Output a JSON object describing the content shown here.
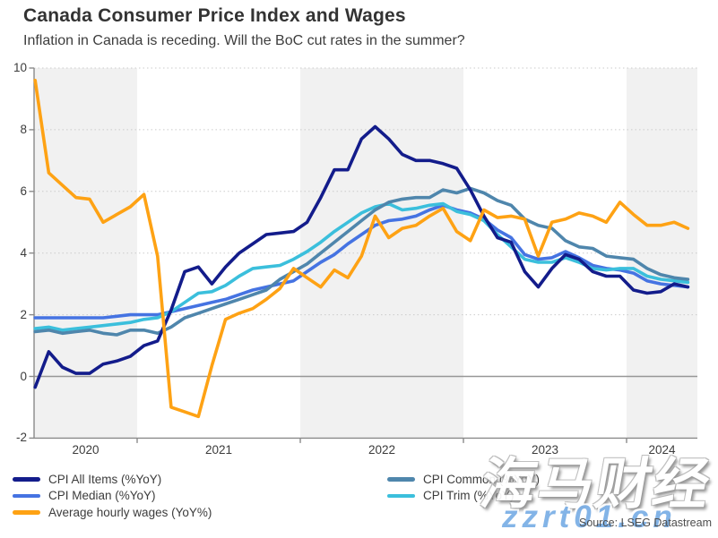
{
  "source": {
    "label": "Source: LSEG Datastream"
  },
  "watermark": {
    "text": "海马财经",
    "url": "zzrt01.cn"
  },
  "legend": {
    "left_indexes": [
      0,
      1,
      2
    ],
    "right_indexes": [
      3,
      4
    ]
  },
  "chart_data": {
    "type": "line",
    "title": "Canada Consumer Price Index and Wages",
    "subtitle": "Inflation in Canada is receding. Will the BoC cut rates in the summer?",
    "xlabel": "",
    "ylabel": "",
    "ylim": [
      -2,
      10
    ],
    "y_ticks": [
      10,
      8,
      6,
      4,
      2,
      0,
      -2
    ],
    "x_year_labels": [
      "2020",
      "2021",
      "2022",
      "2023",
      "2024"
    ],
    "grid": "dotted horizontal gridlines at 2,4,6,8,10; solid line at 0; alternating gray/white year bands",
    "legend_position": "bottom",
    "x": [
      "2020-05",
      "2020-06",
      "2020-07",
      "2020-08",
      "2020-09",
      "2020-10",
      "2020-11",
      "2020-12",
      "2021-01",
      "2021-02",
      "2021-03",
      "2021-04",
      "2021-05",
      "2021-06",
      "2021-07",
      "2021-08",
      "2021-09",
      "2021-10",
      "2021-11",
      "2021-12",
      "2022-01",
      "2022-02",
      "2022-03",
      "2022-04",
      "2022-05",
      "2022-06",
      "2022-07",
      "2022-08",
      "2022-09",
      "2022-10",
      "2022-11",
      "2022-12",
      "2023-01",
      "2023-02",
      "2023-03",
      "2023-04",
      "2023-05",
      "2023-06",
      "2023-07",
      "2023-08",
      "2023-09",
      "2023-10",
      "2023-11",
      "2023-12",
      "2024-01",
      "2024-02",
      "2024-03",
      "2024-04",
      "2024-05"
    ],
    "series": [
      {
        "name": "CPI All Items (%YoY)",
        "color": "#131c8b",
        "values": [
          -0.35,
          0.8,
          0.3,
          0.1,
          0.1,
          0.4,
          0.5,
          0.65,
          1.0,
          1.15,
          2.15,
          3.4,
          3.55,
          3.0,
          3.55,
          4.0,
          4.3,
          4.6,
          4.65,
          4.7,
          5.0,
          5.8,
          6.7,
          6.7,
          7.7,
          8.1,
          7.7,
          7.2,
          7.0,
          7.0,
          6.9,
          6.75,
          6.05,
          5.2,
          4.5,
          4.35,
          3.4,
          2.9,
          3.5,
          3.95,
          3.8,
          3.4,
          3.25,
          3.25,
          2.8,
          2.7,
          2.75,
          3.0,
          2.9
        ]
      },
      {
        "name": "CPI Median (%YoY)",
        "color": "#4573e2",
        "values": [
          1.9,
          1.9,
          1.9,
          1.9,
          1.9,
          1.9,
          1.95,
          2.0,
          2.0,
          2.0,
          2.1,
          2.2,
          2.3,
          2.4,
          2.5,
          2.65,
          2.8,
          2.9,
          3.0,
          3.1,
          3.4,
          3.7,
          3.95,
          4.3,
          4.6,
          4.9,
          5.05,
          5.1,
          5.2,
          5.4,
          5.55,
          5.4,
          5.3,
          5.1,
          4.75,
          4.5,
          3.95,
          3.8,
          3.85,
          4.05,
          3.85,
          3.6,
          3.5,
          3.45,
          3.35,
          3.1,
          3.0,
          2.95,
          2.9
        ]
      },
      {
        "name": "Average hourly wages (YoY%)",
        "color": "#fea214",
        "values": [
          9.6,
          6.6,
          6.2,
          5.8,
          5.75,
          5.0,
          5.25,
          5.5,
          5.9,
          3.9,
          -1.0,
          -1.15,
          -1.3,
          0.35,
          1.85,
          2.05,
          2.2,
          2.5,
          2.85,
          3.5,
          3.2,
          2.9,
          3.45,
          3.2,
          3.9,
          5.2,
          4.5,
          4.8,
          4.9,
          5.2,
          5.45,
          4.7,
          4.4,
          5.4,
          5.15,
          5.2,
          5.1,
          3.9,
          5.0,
          5.1,
          5.3,
          5.2,
          5.0,
          5.65,
          5.25,
          4.9,
          4.9,
          5.0,
          4.8
        ]
      },
      {
        "name": "CPI Common (%YoY)",
        "color": "#4f86ac",
        "values": [
          1.45,
          1.5,
          1.4,
          1.45,
          1.5,
          1.4,
          1.35,
          1.5,
          1.5,
          1.4,
          1.6,
          1.9,
          2.05,
          2.2,
          2.35,
          2.5,
          2.65,
          2.8,
          3.15,
          3.4,
          3.65,
          4.0,
          4.35,
          4.7,
          5.05,
          5.4,
          5.65,
          5.75,
          5.8,
          5.8,
          6.05,
          5.95,
          6.1,
          5.95,
          5.7,
          5.55,
          5.1,
          4.9,
          4.8,
          4.4,
          4.2,
          4.15,
          3.9,
          3.85,
          3.8,
          3.5,
          3.3,
          3.2,
          3.15
        ]
      },
      {
        "name": "CPI Trim (%YoY)",
        "color": "#3bbfdc",
        "values": [
          1.55,
          1.6,
          1.5,
          1.55,
          1.6,
          1.65,
          1.7,
          1.75,
          1.85,
          1.9,
          2.1,
          2.4,
          2.7,
          2.75,
          2.95,
          3.25,
          3.5,
          3.55,
          3.6,
          3.8,
          4.05,
          4.35,
          4.7,
          5.0,
          5.3,
          5.5,
          5.6,
          5.4,
          5.45,
          5.55,
          5.6,
          5.35,
          5.25,
          5.05,
          4.6,
          4.2,
          3.8,
          3.7,
          3.7,
          3.85,
          3.7,
          3.5,
          3.45,
          3.5,
          3.5,
          3.25,
          3.15,
          3.1,
          3.05
        ]
      }
    ],
    "style": {
      "band_gray": "#f1f1f1",
      "grid_color": "#cbcbcb",
      "zero_line_color": "#979797",
      "axis_color": "#8a8a8a",
      "draw_order": [
        1,
        4,
        3,
        0,
        2
      ]
    }
  }
}
